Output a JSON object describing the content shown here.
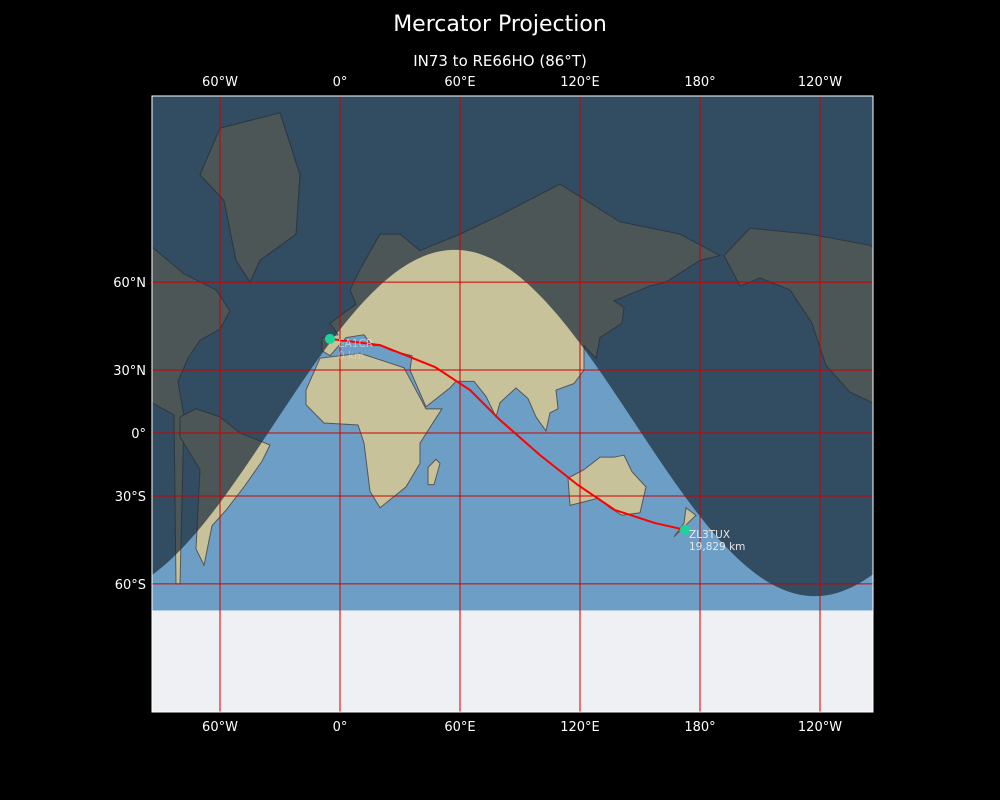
{
  "title": "Mercator Projection",
  "subtitle": "IN73 to RE66HO (86°T)",
  "colors": {
    "ocean": "#6d9fc6",
    "land": "#c8c29a",
    "night": "#1c2c3c",
    "grid": "#cc0000",
    "path": "#ff0000",
    "marker": "#1ad49a",
    "ice": "#eef0f4"
  },
  "map": {
    "projection": "mercator",
    "central_longitude": 86,
    "x_ticks": [
      "60°W",
      "0°",
      "60°E",
      "120°E",
      "180°",
      "120°W"
    ],
    "x_tick_lons": [
      -60,
      0,
      60,
      120,
      180,
      240
    ],
    "y_ticks": [
      "60°N",
      "30°N",
      "0°",
      "30°S",
      "60°S"
    ],
    "y_tick_lats": [
      60,
      30,
      0,
      -30,
      -60
    ],
    "start": {
      "label": "EA1CR",
      "distance": "0 km",
      "lon": -5,
      "lat": 42.5
    },
    "end": {
      "label": "ZL3TUX",
      "distance": "19,829 km",
      "lon": 172.5,
      "lat": -43.5
    },
    "path": [
      [
        -5,
        42.5
      ],
      [
        20,
        40.2
      ],
      [
        47.5,
        31.3
      ],
      [
        65,
        21
      ],
      [
        80,
        6.5
      ],
      [
        100,
        -11
      ],
      [
        119,
        -25.2
      ],
      [
        137.5,
        -35.9
      ],
      [
        157.5,
        -41
      ],
      [
        172.5,
        -43.5
      ]
    ]
  }
}
